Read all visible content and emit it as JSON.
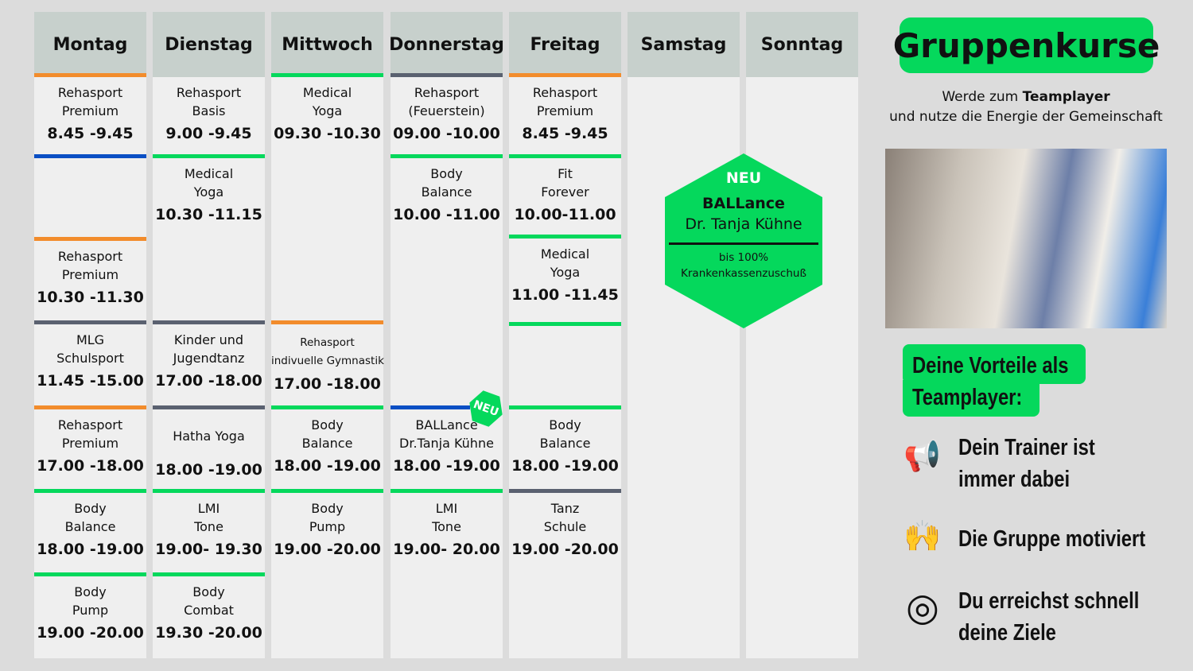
{
  "days": [
    {
      "name": "Montag",
      "slots": [
        {
          "bar": "#f28c2c",
          "lines": [
            "Rehasport",
            "Premium"
          ],
          "time": "8.45 -9.45"
        },
        {
          "bar": "#0a4fc4",
          "lines": [],
          "time": ""
        },
        {
          "bar": "#f28c2c",
          "lines": [
            "Rehasport",
            "Premium"
          ],
          "time": "10.30 -11.30"
        },
        {
          "bar": "#5a6170",
          "lines": [
            "MLG",
            "Schulsport"
          ],
          "time": "11.45 -15.00"
        },
        {
          "bar": "#f28c2c",
          "lines": [
            "Rehasport",
            "Premium"
          ],
          "time": "17.00 -18.00"
        },
        {
          "bar": "#05d85c",
          "lines": [
            "Body",
            "Balance"
          ],
          "time": "18.00 -19.00"
        },
        {
          "bar": "#05d85c",
          "lines": [
            "Body",
            "Pump"
          ],
          "time": "19.00 -20.00"
        }
      ]
    },
    {
      "name": "Dienstag",
      "slots": [
        {
          "bar": null,
          "lines": [
            "Rehasport",
            "Basis"
          ],
          "time": "9.00 -9.45"
        },
        {
          "bar": "#05d85c",
          "lines": [
            "Medical",
            "Yoga"
          ],
          "time": "10.30 -11.15"
        },
        {
          "bar": "#5a6170",
          "lines": [
            "Kinder und",
            "Jugendtanz"
          ],
          "time": "17.00 -18.00"
        },
        {
          "bar": "#5a6170",
          "lines": [
            "Hatha Yoga"
          ],
          "time": "18.00 -19.00"
        },
        {
          "bar": "#05d85c",
          "lines": [
            "LMI",
            "Tone"
          ],
          "time": "19.00- 19.30"
        },
        {
          "bar": "#05d85c",
          "lines": [
            "Body",
            "Combat"
          ],
          "time": "19.30 -20.00"
        }
      ]
    },
    {
      "name": "Mittwoch",
      "slots": [
        {
          "bar": "#05d85c",
          "lines": [
            "Medical",
            "Yoga"
          ],
          "time": "09.30 -10.30"
        },
        {
          "bar": "#f28c2c",
          "lines": [
            "Rehasport",
            "indivuelle Gymnastik"
          ],
          "time": "17.00 -18.00",
          "small": true
        },
        {
          "bar": "#05d85c",
          "lines": [
            "Body",
            "Balance"
          ],
          "time": "18.00 -19.00"
        },
        {
          "bar": "#05d85c",
          "lines": [
            "Body",
            "Pump"
          ],
          "time": "19.00 -20.00"
        }
      ]
    },
    {
      "name": "Donnerstag",
      "slots": [
        {
          "bar": "#5a6170",
          "lines": [
            "Rehasport",
            "(Feuerstein)"
          ],
          "time": "09.00 -10.00"
        },
        {
          "bar": "#05d85c",
          "lines": [
            "Body",
            "Balance"
          ],
          "time": "10.00 -11.00"
        },
        {
          "bar": "#0a4fc4",
          "lines": [
            "BALLance",
            "Dr.Tanja Kühne"
          ],
          "time": "18.00 -19.00",
          "badge": "NEU"
        },
        {
          "bar": "#05d85c",
          "lines": [
            "LMI",
            "Tone"
          ],
          "time": "19.00- 20.00"
        }
      ]
    },
    {
      "name": "Freitag",
      "slots": [
        {
          "bar": "#f28c2c",
          "lines": [
            "Rehasport",
            "Premium"
          ],
          "time": "8.45 -9.45"
        },
        {
          "bar": "#05d85c",
          "lines": [
            "Fit",
            "Forever"
          ],
          "time": "10.00-11.00"
        },
        {
          "bar": "#05d85c",
          "lines": [
            "Medical",
            "Yoga"
          ],
          "time": "11.00 -11.45"
        },
        {
          "bar": "#05d85c",
          "lines": [],
          "time": ""
        },
        {
          "bar": "#05d85c",
          "lines": [
            "Body",
            "Balance"
          ],
          "time": "18.00 -19.00"
        },
        {
          "bar": "#5a6170",
          "lines": [
            "Tanz",
            "Schule"
          ],
          "time": "19.00 -20.00"
        }
      ]
    },
    {
      "name": "Samstag",
      "slots": []
    },
    {
      "name": "Sonntag",
      "slots": []
    }
  ],
  "promo": {
    "badge": "NEU",
    "title": "BALLance",
    "trainer": "Dr. Tanja Kühne",
    "line1": "bis 100%",
    "line2": "Krankenkassenzuschuß"
  },
  "sidebar": {
    "title": "Gruppenkurse",
    "subtitle_pre": "Werde zum ",
    "subtitle_bold": "Teamplayer",
    "subtitle_line2": "und nutze die Energie der Gemeinschaft",
    "vorteile_line1": "Deine Vorteile als",
    "vorteile_line2": "Teamplayer:",
    "benefits": [
      {
        "icon": "megaphone-icon",
        "glyph": "📢",
        "lines": [
          "Dein Trainer ist",
          "immer dabei"
        ]
      },
      {
        "icon": "group-icon",
        "glyph": "🙌",
        "lines": [
          "Die Gruppe motiviert"
        ]
      },
      {
        "icon": "target-icon",
        "glyph": "◎",
        "lines": [
          "Du erreichst schnell",
          "deine Ziele"
        ]
      }
    ]
  },
  "colors": {
    "green": "#05d85c",
    "orange": "#f28c2c",
    "blue": "#0a4fc4",
    "gray": "#5a6170"
  }
}
